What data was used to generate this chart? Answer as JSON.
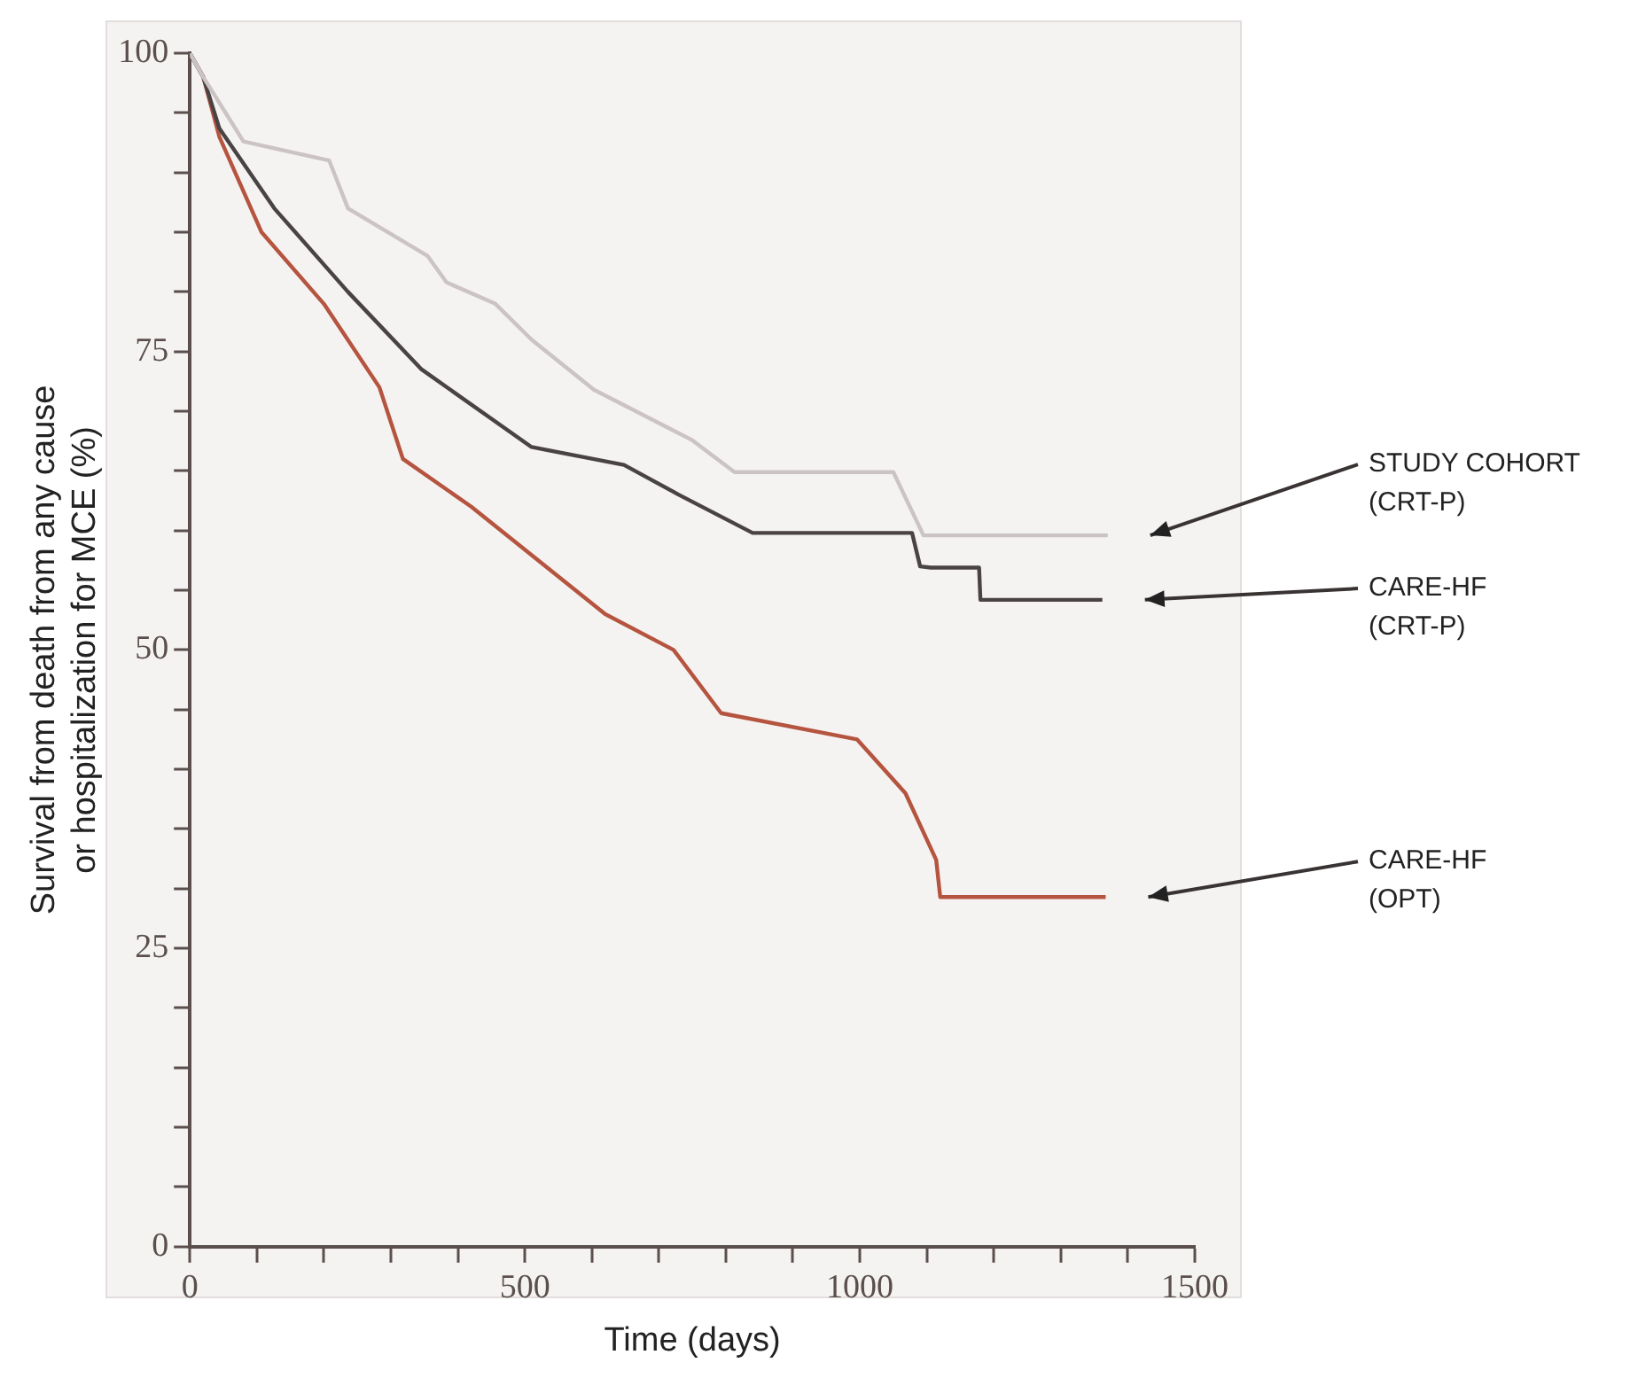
{
  "chart_data": {
    "type": "line",
    "xlabel": "Time (days)",
    "ylabel": "Survival from death from any cause\nor hospitalization for MCE (%)",
    "xlim": [
      0,
      1500
    ],
    "ylim": [
      0,
      100
    ],
    "xticks": [
      0,
      {
        "value": 100,
        "label": null
      },
      {
        "value": 200,
        "label": null
      },
      {
        "value": 300,
        "label": null
      },
      {
        "value": 400,
        "label": null
      },
      500,
      {
        "value": 600,
        "label": null
      },
      {
        "value": 700,
        "label": null
      },
      {
        "value": 800,
        "label": null
      },
      {
        "value": 900,
        "label": null
      },
      1000,
      {
        "value": 1100,
        "label": null
      },
      {
        "value": 1200,
        "label": null
      },
      {
        "value": 1300,
        "label": null
      },
      {
        "value": 1400,
        "label": null
      },
      1500
    ],
    "yticks": [
      0,
      {
        "value": 5,
        "label": null
      },
      {
        "value": 10,
        "label": null
      },
      {
        "value": 15,
        "label": null
      },
      {
        "value": 20,
        "label": null
      },
      25,
      {
        "value": 30,
        "label": null
      },
      {
        "value": 35,
        "label": null
      },
      {
        "value": 40,
        "label": null
      },
      {
        "value": 45,
        "label": null
      },
      50,
      {
        "value": 55,
        "label": null
      },
      {
        "value": 60,
        "label": null
      },
      {
        "value": 65,
        "label": null
      },
      {
        "value": 70,
        "label": null
      },
      75,
      {
        "value": 80,
        "label": null
      },
      {
        "value": 85,
        "label": null
      },
      {
        "value": 90,
        "label": null
      },
      {
        "value": 95,
        "label": null
      },
      100
    ],
    "grid": false,
    "legend": false,
    "marker": "none",
    "line_style": "solid",
    "series": [
      {
        "name": "STUDY COHORT\n(CRT-P)",
        "color": "#cbc3c4",
        "x": [
          0,
          20,
          80,
          208,
          236,
          355,
          383,
          456,
          510,
          603,
          749,
          813,
          1050,
          1095,
          1370
        ],
        "values": [
          100,
          98,
          92.6,
          91,
          87,
          83,
          80.8,
          79,
          76,
          71.8,
          67.6,
          64.9,
          64.9,
          59.6,
          59.6
        ]
      },
      {
        "name": "CARE-HF\n(CRT-P)",
        "color": "#4a4343",
        "x": [
          0,
          20,
          44,
          126,
          236,
          346,
          510,
          648,
          730,
          840,
          1078,
          1090,
          1106,
          1178,
          1180,
          1362
        ],
        "values": [
          100,
          98,
          93.7,
          87,
          80,
          73.5,
          67,
          65.5,
          63,
          59.8,
          59.8,
          57,
          56.9,
          56.9,
          54.2,
          54.2
        ]
      },
      {
        "name": "CARE-HF\n(OPT)",
        "color": "#b5543f",
        "x": [
          0,
          20,
          44,
          107,
          200,
          283,
          318,
          420,
          620,
          722,
          793,
          996,
          1068,
          1114,
          1120,
          1367
        ],
        "values": [
          100,
          98,
          93,
          85,
          79,
          72,
          66,
          62,
          53,
          50,
          44.7,
          42.5,
          38,
          32.4,
          29.3,
          29.3
        ]
      }
    ]
  }
}
